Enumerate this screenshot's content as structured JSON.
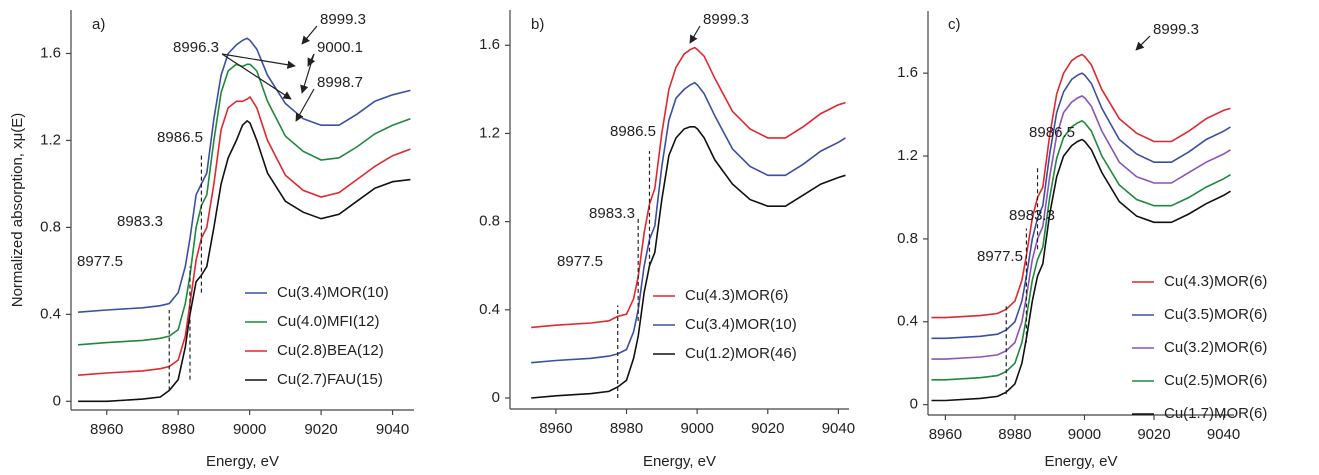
{
  "chart_data": [
    {
      "type": "line",
      "panel_label": "a)",
      "y_label": "Normalized absorption, xμ(E)",
      "x_label": "Energy, eV",
      "xlim": [
        8950,
        9046
      ],
      "ylim": [
        -0.04,
        1.8
      ],
      "xticks": [
        8960,
        8980,
        9000,
        9020,
        9040
      ],
      "yticks": [
        0,
        0.4,
        0.8,
        1.2,
        1.6
      ],
      "markers": [
        8977.5,
        8983.3,
        8986.5
      ],
      "arrows": [
        8999.3,
        8996.3,
        9000.1,
        8998.7
      ],
      "x": [
        8952,
        8960,
        8970,
        8975,
        8977.5,
        8980,
        8982,
        8983.3,
        8985,
        8986.5,
        8988,
        8990,
        8992,
        8994,
        8996.3,
        8998,
        8999.3,
        9000.1,
        9002,
        9005,
        9010,
        9015,
        9020,
        9025,
        9030,
        9035,
        9040,
        9045
      ],
      "series": [
        {
          "name": "Cu(3.4)MOR(10)",
          "color": "#3b4fa3",
          "values": [
            0.41,
            0.42,
            0.43,
            0.44,
            0.45,
            0.5,
            0.62,
            0.75,
            0.95,
            1.0,
            1.05,
            1.3,
            1.5,
            1.6,
            1.64,
            1.66,
            1.67,
            1.66,
            1.62,
            1.5,
            1.37,
            1.3,
            1.27,
            1.27,
            1.32,
            1.38,
            1.41,
            1.43
          ]
        },
        {
          "name": "Cu(4.0)MFI(12)",
          "color": "#1e8a3a",
          "values": [
            0.26,
            0.27,
            0.28,
            0.29,
            0.3,
            0.33,
            0.45,
            0.58,
            0.8,
            0.9,
            0.95,
            1.2,
            1.42,
            1.52,
            1.55,
            1.54,
            1.55,
            1.55,
            1.52,
            1.38,
            1.22,
            1.15,
            1.11,
            1.12,
            1.17,
            1.23,
            1.27,
            1.3
          ]
        },
        {
          "name": "Cu(2.8)BEA(12)",
          "color": "#e0282e",
          "values": [
            0.12,
            0.13,
            0.14,
            0.15,
            0.16,
            0.19,
            0.3,
            0.45,
            0.65,
            0.75,
            0.8,
            1.0,
            1.25,
            1.35,
            1.38,
            1.38,
            1.39,
            1.4,
            1.35,
            1.2,
            1.04,
            0.97,
            0.94,
            0.96,
            1.02,
            1.08,
            1.13,
            1.16
          ]
        },
        {
          "name": "Cu(2.7)FAU(15)",
          "color": "#111111",
          "values": [
            0,
            0,
            0.01,
            0.02,
            0.05,
            0.1,
            0.25,
            0.4,
            0.55,
            0.58,
            0.62,
            0.8,
            1.0,
            1.12,
            1.2,
            1.27,
            1.29,
            1.28,
            1.2,
            1.05,
            0.92,
            0.87,
            0.84,
            0.86,
            0.92,
            0.98,
            1.01,
            1.02
          ]
        }
      ]
    },
    {
      "type": "line",
      "panel_label": "b)",
      "x_label": "Energy, eV",
      "xlim": [
        8947,
        9043
      ],
      "ylim": [
        -0.05,
        1.76
      ],
      "xticks": [
        8960,
        8980,
        9000,
        9020,
        9040
      ],
      "yticks": [
        0,
        0.4,
        0.8,
        1.2,
        1.6
      ],
      "markers": [
        8977.5,
        8983.3,
        8986.5
      ],
      "arrows": [
        8999.3
      ],
      "x": [
        8953,
        8960,
        8970,
        8975,
        8977.5,
        8980,
        8982,
        8983.3,
        8985,
        8986.5,
        8988,
        8990,
        8992,
        8994,
        8996.3,
        8998,
        8999.3,
        9000.1,
        9002,
        9005,
        9010,
        9015,
        9020,
        9025,
        9030,
        9035,
        9040,
        9042
      ],
      "series": [
        {
          "name": "Cu(4.3)MOR(6)",
          "color": "#e0282e",
          "values": [
            0.32,
            0.33,
            0.34,
            0.35,
            0.37,
            0.38,
            0.45,
            0.55,
            0.75,
            0.88,
            0.95,
            1.2,
            1.4,
            1.5,
            1.56,
            1.58,
            1.59,
            1.58,
            1.55,
            1.45,
            1.3,
            1.22,
            1.18,
            1.18,
            1.23,
            1.29,
            1.33,
            1.34
          ]
        },
        {
          "name": "Cu(3.4)MOR(10)",
          "color": "#3b4fa3",
          "values": [
            0.16,
            0.17,
            0.18,
            0.19,
            0.2,
            0.22,
            0.3,
            0.4,
            0.6,
            0.72,
            0.78,
            1.05,
            1.26,
            1.36,
            1.4,
            1.42,
            1.43,
            1.42,
            1.38,
            1.28,
            1.13,
            1.05,
            1.01,
            1.01,
            1.06,
            1.12,
            1.16,
            1.18
          ]
        },
        {
          "name": "Cu(1.2)MOR(46)",
          "color": "#111111",
          "values": [
            0,
            0.01,
            0.02,
            0.03,
            0.05,
            0.08,
            0.18,
            0.28,
            0.48,
            0.6,
            0.66,
            0.9,
            1.1,
            1.18,
            1.22,
            1.23,
            1.23,
            1.22,
            1.18,
            1.08,
            0.97,
            0.9,
            0.87,
            0.87,
            0.92,
            0.97,
            1.0,
            1.01
          ]
        }
      ]
    },
    {
      "type": "line",
      "panel_label": "c)",
      "x_label": "Energy, eV",
      "xlim": [
        8955,
        9043
      ],
      "ylim": [
        -0.05,
        1.9
      ],
      "xticks": [
        8960,
        8980,
        9000,
        9020,
        9040
      ],
      "yticks": [
        0,
        0.4,
        0.8,
        1.2,
        1.6
      ],
      "markers": [
        8977.5,
        8983.3,
        8986.5
      ],
      "arrows": [
        8999.3
      ],
      "x": [
        8956,
        8960,
        8970,
        8975,
        8977.5,
        8980,
        8982,
        8983.3,
        8985,
        8986.5,
        8988,
        8990,
        8992,
        8994,
        8996.3,
        8998,
        8999.3,
        9000.1,
        9002,
        9005,
        9010,
        9015,
        9020,
        9025,
        9030,
        9035,
        9040,
        9042
      ],
      "series": [
        {
          "name": "Cu(4.3)MOR(6)",
          "color": "#e0282e",
          "values": [
            0.42,
            0.42,
            0.43,
            0.44,
            0.46,
            0.5,
            0.6,
            0.72,
            0.9,
            1.0,
            1.05,
            1.3,
            1.5,
            1.6,
            1.66,
            1.68,
            1.69,
            1.68,
            1.64,
            1.52,
            1.38,
            1.31,
            1.27,
            1.27,
            1.32,
            1.38,
            1.42,
            1.43
          ]
        },
        {
          "name": "Cu(3.5)MOR(6)",
          "color": "#3b4fa3",
          "values": [
            0.32,
            0.32,
            0.33,
            0.34,
            0.36,
            0.4,
            0.5,
            0.62,
            0.8,
            0.9,
            0.96,
            1.21,
            1.41,
            1.51,
            1.57,
            1.59,
            1.6,
            1.59,
            1.55,
            1.43,
            1.28,
            1.21,
            1.17,
            1.17,
            1.22,
            1.28,
            1.32,
            1.34
          ]
        },
        {
          "name": "Cu(3.2)MOR(6)",
          "color": "#8a55b5",
          "values": [
            0.22,
            0.22,
            0.23,
            0.24,
            0.26,
            0.3,
            0.4,
            0.52,
            0.7,
            0.8,
            0.86,
            1.1,
            1.3,
            1.41,
            1.46,
            1.48,
            1.49,
            1.48,
            1.44,
            1.32,
            1.17,
            1.1,
            1.07,
            1.07,
            1.12,
            1.17,
            1.21,
            1.23
          ]
        },
        {
          "name": "Cu(2.5)MOR(6)",
          "color": "#1e8a3a",
          "values": [
            0.12,
            0.12,
            0.13,
            0.14,
            0.16,
            0.2,
            0.3,
            0.42,
            0.6,
            0.7,
            0.76,
            1.0,
            1.19,
            1.29,
            1.34,
            1.36,
            1.37,
            1.36,
            1.32,
            1.2,
            1.06,
            0.99,
            0.96,
            0.96,
            1.0,
            1.05,
            1.09,
            1.11
          ]
        },
        {
          "name": "Cu(1.7)MOR(6)",
          "color": "#111111",
          "values": [
            0.02,
            0.02,
            0.03,
            0.04,
            0.06,
            0.1,
            0.2,
            0.32,
            0.5,
            0.62,
            0.68,
            0.92,
            1.1,
            1.2,
            1.25,
            1.27,
            1.28,
            1.27,
            1.23,
            1.12,
            0.98,
            0.91,
            0.88,
            0.88,
            0.92,
            0.97,
            1.01,
            1.03
          ]
        }
      ]
    }
  ]
}
